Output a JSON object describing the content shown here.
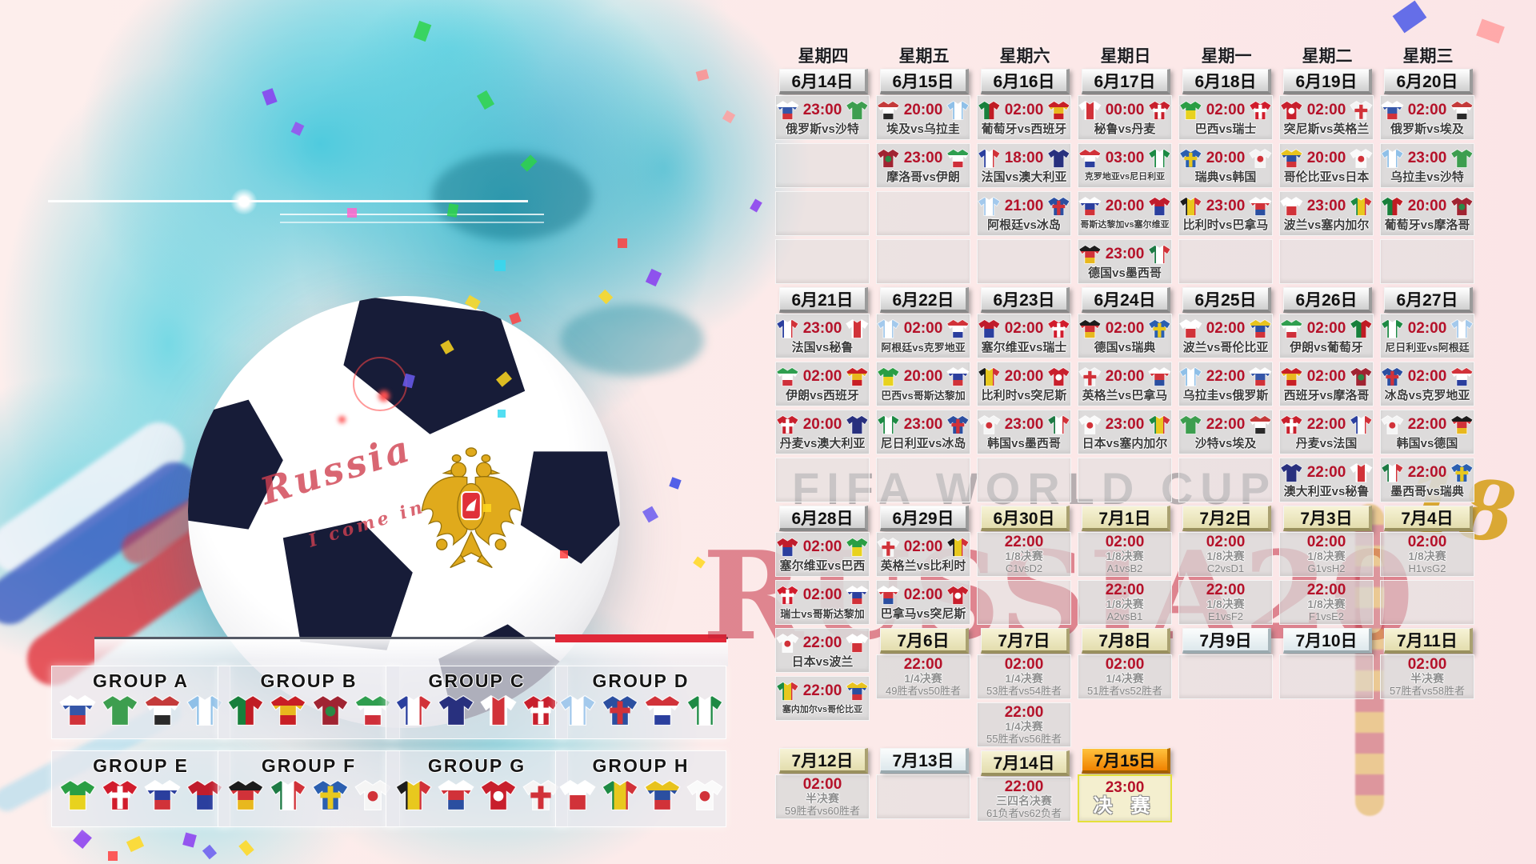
{
  "labels": {
    "vs": "vs"
  },
  "art": {
    "ball_text_line1": "Russia",
    "ball_text_line2": "I come in",
    "watermark_fifa": "FIFA WORLD CUP",
    "watermark_russia": "RUSSIA20",
    "watermark_gold": "18"
  },
  "colors": {
    "time_red": "#b5122a",
    "cream_header": "#f2eecb",
    "final_orange": "#f08200",
    "cell_gray": "#d9d9d9",
    "accent_red_watermark": "#c12035"
  },
  "teams": {
    "俄罗斯": {
      "colors": [
        "#ffffff",
        "#3556a8",
        "#d13239"
      ],
      "dir": "h"
    },
    "沙特": {
      "colors": [
        "#3d9e4f"
      ],
      "dir": "h"
    },
    "埃及": {
      "colors": [
        "#c43a3a",
        "#ffffff",
        "#2a2a2a"
      ],
      "dir": "h"
    },
    "乌拉圭": {
      "colors": [
        "#8fc0e8",
        "#ffffff",
        "#8fc0e8"
      ],
      "dir": "v"
    },
    "葡萄牙": {
      "colors": [
        "#17803c",
        "#c01c24"
      ],
      "dir": "v"
    },
    "西班牙": {
      "colors": [
        "#c81f25",
        "#e8b81e",
        "#c81f25"
      ],
      "dir": "h"
    },
    "摩洛哥": {
      "colors": [
        "#a02432"
      ],
      "dir": "h",
      "mark": {
        "type": "dot",
        "color": "#2a8a46"
      }
    },
    "伊朗": {
      "colors": [
        "#2f9e4f",
        "#ffffff",
        "#cf2f3a"
      ],
      "dir": "h"
    },
    "法国": {
      "colors": [
        "#2b3f9e",
        "#ffffff",
        "#d13239"
      ],
      "dir": "v"
    },
    "澳大利亚": {
      "colors": [
        "#28307e"
      ],
      "dir": "h"
    },
    "秘鲁": {
      "colors": [
        "#ffffff",
        "#d13239",
        "#ffffff"
      ],
      "dir": "v"
    },
    "丹麦": {
      "colors": [
        "#c81f2c"
      ],
      "dir": "h",
      "mark": {
        "type": "cross",
        "color": "#ffffff"
      }
    },
    "阿根廷": {
      "colors": [
        "#a3c9ec",
        "#ffffff",
        "#a3c9ec"
      ],
      "dir": "v"
    },
    "冰岛": {
      "colors": [
        "#2b4fa0"
      ],
      "dir": "h",
      "mark": {
        "type": "cross",
        "color": "#d13239"
      }
    },
    "克罗地亚": {
      "colors": [
        "#d13239",
        "#ffffff",
        "#2b3f9e"
      ],
      "dir": "h"
    },
    "尼日利亚": {
      "colors": [
        "#1d8a44",
        "#ffffff",
        "#1d8a44"
      ],
      "dir": "v"
    },
    "哥斯达黎加": {
      "colors": [
        "#ffffff",
        "#2b3f9e",
        "#d13239"
      ],
      "dir": "h"
    },
    "塞尔维亚": {
      "colors": [
        "#c01c2c",
        "#2b3f9e"
      ],
      "dir": "h"
    },
    "德国": {
      "colors": [
        "#1c1c1c",
        "#d13239",
        "#e8b81e"
      ],
      "dir": "h"
    },
    "墨西哥": {
      "colors": [
        "#1d7a44",
        "#ffffff",
        "#d13239"
      ],
      "dir": "v"
    },
    "巴西": {
      "colors": [
        "#2a9e44",
        "#e8d21e"
      ],
      "dir": "h"
    },
    "瑞士": {
      "colors": [
        "#d11c2c"
      ],
      "dir": "h",
      "mark": {
        "type": "cross",
        "color": "#ffffff"
      }
    },
    "瑞典": {
      "colors": [
        "#2b5fb0"
      ],
      "dir": "h",
      "mark": {
        "type": "cross",
        "color": "#e8c81e"
      }
    },
    "韩国": {
      "colors": [
        "#f5f5f5"
      ],
      "dir": "h",
      "mark": {
        "type": "dot",
        "color": "#d13239"
      }
    },
    "比利时": {
      "colors": [
        "#1c1c1c",
        "#e8c81e",
        "#d13239"
      ],
      "dir": "v"
    },
    "巴拿马": {
      "colors": [
        "#ffffff",
        "#d13239",
        "#2b4fa0"
      ],
      "dir": "h"
    },
    "突尼斯": {
      "colors": [
        "#c81f2c"
      ],
      "dir": "h",
      "mark": {
        "type": "dot",
        "color": "#ffffff"
      }
    },
    "英格兰": {
      "colors": [
        "#f5f5f5"
      ],
      "dir": "h",
      "mark": {
        "type": "cross",
        "color": "#d13239"
      }
    },
    "哥伦比亚": {
      "colors": [
        "#e8c31e",
        "#2b4fa0",
        "#d13239"
      ],
      "dir": "h"
    },
    "日本": {
      "colors": [
        "#fafafa"
      ],
      "dir": "h",
      "mark": {
        "type": "dot",
        "color": "#d13239"
      }
    },
    "波兰": {
      "colors": [
        "#ffffff",
        "#d13239"
      ],
      "dir": "h"
    },
    "塞内加尔": {
      "colors": [
        "#1d8a44",
        "#e8c81e",
        "#d13239"
      ],
      "dir": "v"
    }
  },
  "groups": [
    {
      "label": "GROUP A",
      "teams": [
        "俄罗斯",
        "沙特",
        "埃及",
        "乌拉圭"
      ]
    },
    {
      "label": "GROUP B",
      "teams": [
        "葡萄牙",
        "西班牙",
        "摩洛哥",
        "伊朗"
      ]
    },
    {
      "label": "GROUP C",
      "teams": [
        "法国",
        "澳大利亚",
        "秘鲁",
        "丹麦"
      ]
    },
    {
      "label": "GROUP D",
      "teams": [
        "阿根廷",
        "冰岛",
        "克罗地亚",
        "尼日利亚"
      ]
    },
    {
      "label": "GROUP E",
      "teams": [
        "巴西",
        "瑞士",
        "哥斯达黎加",
        "塞尔维亚"
      ]
    },
    {
      "label": "GROUP F",
      "teams": [
        "德国",
        "墨西哥",
        "瑞典",
        "韩国"
      ]
    },
    {
      "label": "GROUP G",
      "teams": [
        "比利时",
        "巴拿马",
        "突尼斯",
        "英格兰"
      ]
    },
    {
      "label": "GROUP H",
      "teams": [
        "波兰",
        "塞内加尔",
        "哥伦比亚",
        "日本"
      ]
    }
  ],
  "calendar": {
    "columns": [
      {
        "day": "星期四",
        "items": [
          {
            "t": "date",
            "s": "g",
            "v": "6月14日"
          },
          {
            "t": "m",
            "time": "23:00",
            "h": "俄罗斯",
            "a": "沙特"
          },
          {
            "t": "e"
          },
          {
            "t": "e"
          },
          {
            "t": "e"
          },
          {
            "t": "date",
            "s": "g",
            "v": "6月21日"
          },
          {
            "t": "m",
            "time": "23:00",
            "h": "法国",
            "a": "秘鲁"
          },
          {
            "t": "m",
            "time": "02:00",
            "h": "伊朗",
            "a": "西班牙"
          },
          {
            "t": "m",
            "time": "20:00",
            "h": "丹麦",
            "a": "澳大利亚"
          },
          {
            "t": "e"
          },
          {
            "t": "date",
            "s": "g",
            "v": "6月28日"
          },
          {
            "t": "m",
            "time": "02:00",
            "h": "塞尔维亚",
            "a": "巴西"
          },
          {
            "t": "m",
            "time": "02:00",
            "h": "瑞士",
            "a": "哥斯达黎加"
          },
          {
            "t": "m",
            "time": "22:00",
            "h": "日本",
            "a": "波兰"
          },
          {
            "t": "m",
            "time": "22:00",
            "h": "塞内加尔",
            "a": "哥伦比亚"
          },
          {
            "t": "gap"
          },
          {
            "t": "date",
            "s": "k",
            "v": "7月12日"
          },
          {
            "t": "ko",
            "time": "02:00",
            "round": "半决赛",
            "pair": "59胜者vs60胜者"
          }
        ]
      },
      {
        "day": "星期五",
        "items": [
          {
            "t": "date",
            "s": "g",
            "v": "6月15日"
          },
          {
            "t": "m",
            "time": "20:00",
            "h": "埃及",
            "a": "乌拉圭"
          },
          {
            "t": "m",
            "time": "23:00",
            "h": "摩洛哥",
            "a": "伊朗"
          },
          {
            "t": "e"
          },
          {
            "t": "e"
          },
          {
            "t": "date",
            "s": "g",
            "v": "6月22日"
          },
          {
            "t": "m",
            "time": "02:00",
            "h": "阿根廷",
            "a": "克罗地亚"
          },
          {
            "t": "m",
            "time": "20:00",
            "h": "巴西",
            "a": "哥斯达黎加"
          },
          {
            "t": "m",
            "time": "23:00",
            "h": "尼日利亚",
            "a": "冰岛"
          },
          {
            "t": "e"
          },
          {
            "t": "date",
            "s": "g",
            "v": "6月29日"
          },
          {
            "t": "m",
            "time": "02:00",
            "h": "英格兰",
            "a": "比利时"
          },
          {
            "t": "m",
            "time": "02:00",
            "h": "巴拿马",
            "a": "突尼斯"
          },
          {
            "t": "date",
            "s": "k",
            "v": "7月6日"
          },
          {
            "t": "ko",
            "time": "22:00",
            "round": "1/4决赛",
            "pair": "49胜者vs50胜者"
          },
          {
            "t": "gap2"
          },
          {
            "t": "date",
            "s": "r",
            "v": "7月13日"
          },
          {
            "t": "e"
          }
        ]
      },
      {
        "day": "星期六",
        "items": [
          {
            "t": "date",
            "s": "g",
            "v": "6月16日"
          },
          {
            "t": "m",
            "time": "02:00",
            "h": "葡萄牙",
            "a": "西班牙"
          },
          {
            "t": "m",
            "time": "18:00",
            "h": "法国",
            "a": "澳大利亚"
          },
          {
            "t": "m",
            "time": "21:00",
            "h": "阿根廷",
            "a": "冰岛"
          },
          {
            "t": "e"
          },
          {
            "t": "date",
            "s": "g",
            "v": "6月23日"
          },
          {
            "t": "m",
            "time": "02:00",
            "h": "塞尔维亚",
            "a": "瑞士"
          },
          {
            "t": "m",
            "time": "20:00",
            "h": "比利时",
            "a": "突尼斯"
          },
          {
            "t": "m",
            "time": "23:00",
            "h": "韩国",
            "a": "墨西哥"
          },
          {
            "t": "e"
          },
          {
            "t": "date",
            "s": "k",
            "v": "6月30日"
          },
          {
            "t": "ko",
            "time": "22:00",
            "round": "1/8决赛",
            "pair": "C1vsD2"
          },
          {
            "t": "e"
          },
          {
            "t": "date",
            "s": "k",
            "v": "7月7日"
          },
          {
            "t": "ko",
            "time": "02:00",
            "round": "1/4决赛",
            "pair": "53胜者vs54胜者"
          },
          {
            "t": "ko",
            "time": "22:00",
            "round": "1/4决赛",
            "pair": "55胜者vs56胜者"
          },
          {
            "t": "date",
            "s": "k",
            "v": "7月14日"
          },
          {
            "t": "ko",
            "time": "22:00",
            "round": "三四名决赛",
            "pair": "61负者vs62负者"
          }
        ]
      },
      {
        "day": "星期日",
        "items": [
          {
            "t": "date",
            "s": "g",
            "v": "6月17日"
          },
          {
            "t": "m",
            "time": "00:00",
            "h": "秘鲁",
            "a": "丹麦"
          },
          {
            "t": "m",
            "time": "03:00",
            "h": "克罗地亚",
            "a": "尼日利亚"
          },
          {
            "t": "m",
            "time": "20:00",
            "h": "哥斯达黎加",
            "a": "塞尔维亚"
          },
          {
            "t": "m",
            "time": "23:00",
            "h": "德国",
            "a": "墨西哥"
          },
          {
            "t": "date",
            "s": "g",
            "v": "6月24日"
          },
          {
            "t": "m",
            "time": "02:00",
            "h": "德国",
            "a": "瑞典"
          },
          {
            "t": "m",
            "time": "20:00",
            "h": "英格兰",
            "a": "巴拿马"
          },
          {
            "t": "m",
            "time": "23:00",
            "h": "日本",
            "a": "塞内加尔"
          },
          {
            "t": "e"
          },
          {
            "t": "date",
            "s": "k",
            "v": "7月1日"
          },
          {
            "t": "ko",
            "time": "02:00",
            "round": "1/8决赛",
            "pair": "A1vsB2"
          },
          {
            "t": "ko",
            "time": "22:00",
            "round": "1/8决赛",
            "pair": "A2vsB1"
          },
          {
            "t": "date",
            "s": "k",
            "v": "7月8日"
          },
          {
            "t": "ko",
            "time": "02:00",
            "round": "1/4决赛",
            "pair": "51胜者vs52胜者"
          },
          {
            "t": "gap2"
          },
          {
            "t": "date",
            "s": "f",
            "v": "7月15日"
          },
          {
            "t": "fin",
            "time": "23:00",
            "label": "决 赛"
          }
        ]
      },
      {
        "day": "星期一",
        "items": [
          {
            "t": "date",
            "s": "g",
            "v": "6月18日"
          },
          {
            "t": "m",
            "time": "02:00",
            "h": "巴西",
            "a": "瑞士"
          },
          {
            "t": "m",
            "time": "20:00",
            "h": "瑞典",
            "a": "韩国"
          },
          {
            "t": "m",
            "time": "23:00",
            "h": "比利时",
            "a": "巴拿马"
          },
          {
            "t": "e"
          },
          {
            "t": "date",
            "s": "g",
            "v": "6月25日"
          },
          {
            "t": "m",
            "time": "02:00",
            "h": "波兰",
            "a": "哥伦比亚"
          },
          {
            "t": "m",
            "time": "22:00",
            "h": "乌拉圭",
            "a": "俄罗斯"
          },
          {
            "t": "m",
            "time": "22:00",
            "h": "沙特",
            "a": "埃及"
          },
          {
            "t": "e"
          },
          {
            "t": "date",
            "s": "k",
            "v": "7月2日"
          },
          {
            "t": "ko",
            "time": "02:00",
            "round": "1/8决赛",
            "pair": "C2vsD1"
          },
          {
            "t": "ko",
            "time": "22:00",
            "round": "1/8决赛",
            "pair": "E1vsF2"
          },
          {
            "t": "date",
            "s": "r",
            "v": "7月9日"
          },
          {
            "t": "e"
          }
        ]
      },
      {
        "day": "星期二",
        "items": [
          {
            "t": "date",
            "s": "g",
            "v": "6月19日"
          },
          {
            "t": "m",
            "time": "02:00",
            "h": "突尼斯",
            "a": "英格兰"
          },
          {
            "t": "m",
            "time": "20:00",
            "h": "哥伦比亚",
            "a": "日本"
          },
          {
            "t": "m",
            "time": "23:00",
            "h": "波兰",
            "a": "塞内加尔"
          },
          {
            "t": "e"
          },
          {
            "t": "date",
            "s": "g",
            "v": "6月26日"
          },
          {
            "t": "m",
            "time": "02:00",
            "h": "伊朗",
            "a": "葡萄牙"
          },
          {
            "t": "m",
            "time": "02:00",
            "h": "西班牙",
            "a": "摩洛哥"
          },
          {
            "t": "m",
            "time": "22:00",
            "h": "丹麦",
            "a": "法国"
          },
          {
            "t": "m",
            "time": "22:00",
            "h": "澳大利亚",
            "a": "秘鲁"
          },
          {
            "t": "date",
            "s": "k",
            "v": "7月3日"
          },
          {
            "t": "ko",
            "time": "02:00",
            "round": "1/8决赛",
            "pair": "G1vsH2"
          },
          {
            "t": "ko",
            "time": "22:00",
            "round": "1/8决赛",
            "pair": "F1vsE2"
          },
          {
            "t": "date",
            "s": "r",
            "v": "7月10日"
          },
          {
            "t": "e"
          }
        ]
      },
      {
        "day": "星期三",
        "items": [
          {
            "t": "date",
            "s": "g",
            "v": "6月20日"
          },
          {
            "t": "m",
            "time": "02:00",
            "h": "俄罗斯",
            "a": "埃及"
          },
          {
            "t": "m",
            "time": "23:00",
            "h": "乌拉圭",
            "a": "沙特"
          },
          {
            "t": "m",
            "time": "20:00",
            "h": "葡萄牙",
            "a": "摩洛哥"
          },
          {
            "t": "e"
          },
          {
            "t": "date",
            "s": "g",
            "v": "6月27日"
          },
          {
            "t": "m",
            "time": "02:00",
            "h": "尼日利亚",
            "a": "阿根廷"
          },
          {
            "t": "m",
            "time": "02:00",
            "h": "冰岛",
            "a": "克罗地亚"
          },
          {
            "t": "m",
            "time": "22:00",
            "h": "韩国",
            "a": "德国"
          },
          {
            "t": "m",
            "time": "22:00",
            "h": "墨西哥",
            "a": "瑞典"
          },
          {
            "t": "date",
            "s": "k",
            "v": "7月4日"
          },
          {
            "t": "ko",
            "time": "02:00",
            "round": "1/8决赛",
            "pair": "H1vsG2"
          },
          {
            "t": "e"
          },
          {
            "t": "date",
            "s": "k",
            "v": "7月11日"
          },
          {
            "t": "ko",
            "time": "02:00",
            "round": "半决赛",
            "pair": "57胜者vs58胜者"
          }
        ]
      }
    ]
  }
}
